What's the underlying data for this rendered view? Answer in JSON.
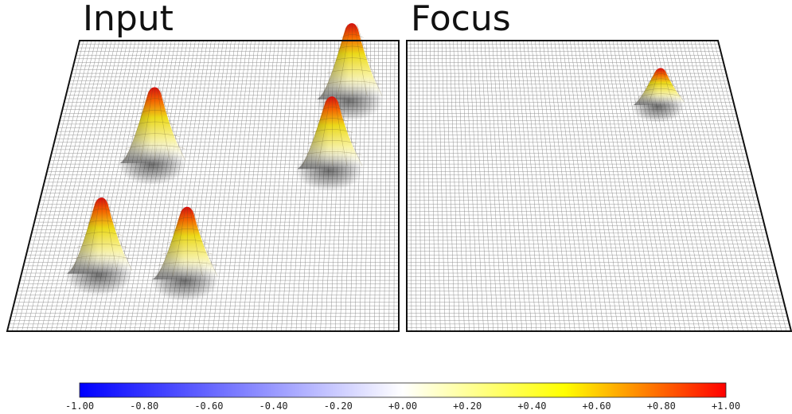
{
  "panels": {
    "input": {
      "title": "Input"
    },
    "focus": {
      "title": "Focus"
    }
  },
  "colorbar": {
    "ticks": [
      "-1.00",
      "-0.80",
      "-0.60",
      "-0.40",
      "-0.20",
      "+0.00",
      "+0.20",
      "+0.40",
      "+0.60",
      "+0.80",
      "+1.00"
    ],
    "min": -1.0,
    "max": 1.0,
    "colors": {
      "low": "#0000ff",
      "mid": "#ffffff",
      "high_mid": "#ffff00",
      "high": "#ff0000"
    }
  },
  "surfaces": {
    "input_peaks": [
      {
        "u": 0.86,
        "v": 0.18,
        "height": 1.0
      },
      {
        "u": 0.3,
        "v": 0.4,
        "height": 1.0
      },
      {
        "u": 0.81,
        "v": 0.42,
        "height": 0.95
      },
      {
        "u": 0.21,
        "v": 0.78,
        "height": 1.0
      },
      {
        "u": 0.44,
        "v": 0.8,
        "height": 0.95
      }
    ],
    "focus_peaks": [
      {
        "u": 0.78,
        "v": 0.2,
        "height": 0.55
      }
    ]
  }
}
